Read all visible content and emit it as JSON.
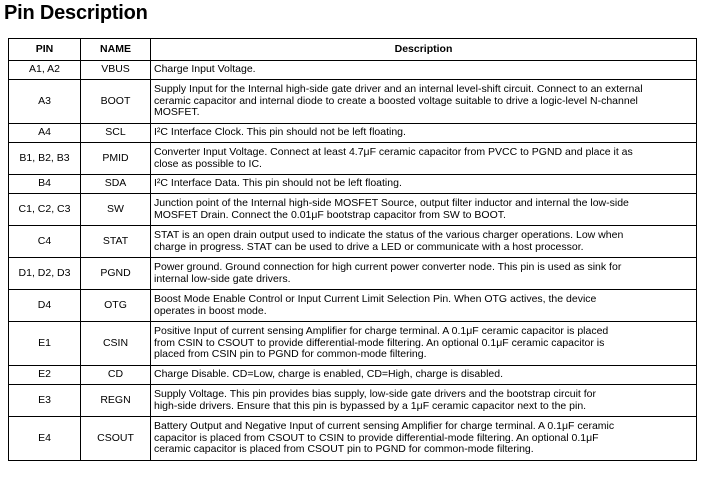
{
  "title": "Pin Description",
  "table": {
    "header": [
      "PIN",
      "NAME",
      "Description"
    ],
    "rows": [
      {
        "pin": "A1, A2",
        "name": "VBUS",
        "lines": [
          "Charge Input Voltage."
        ]
      },
      {
        "pin": "A3",
        "name": "BOOT",
        "lines": [
          "Supply Input for the Internal high-side gate driver and an internal level-shift circuit. Connect to an external",
          "ceramic capacitor and internal diode to create a boosted voltage suitable to drive a logic-level N-channel",
          "MOSFET."
        ]
      },
      {
        "pin": "A4",
        "name": "SCL",
        "lines": [
          "I²C Interface Clock. This pin should not be left floating."
        ]
      },
      {
        "pin": "B1, B2, B3",
        "name": "PMID",
        "lines": [
          "Converter Input Voltage. Connect at least 4.7μF ceramic capacitor from PVCC to PGND and place it as",
          "close as possible to IC."
        ]
      },
      {
        "pin": "B4",
        "name": "SDA",
        "lines": [
          "I²C Interface Data. This pin should not be left floating."
        ]
      },
      {
        "pin": "C1, C2, C3",
        "name": "SW",
        "lines": [
          "Junction point of the Internal high-side MOSFET Source, output filter inductor and internal the low-side",
          "MOSFET Drain. Connect the 0.01μF bootstrap capacitor from SW to BOOT."
        ]
      },
      {
        "pin": "C4",
        "name": "STAT",
        "lines": [
          "STAT is an open drain output used to indicate the status of the various charger operations. Low when",
          "charge in progress. STAT can be used to drive a LED or communicate with a host processor."
        ]
      },
      {
        "pin": "D1, D2, D3",
        "name": "PGND",
        "lines": [
          "Power ground. Ground connection for high current power converter node. This pin is used as sink for",
          "internal low-side gate drivers."
        ]
      },
      {
        "pin": "D4",
        "name": "OTG",
        "lines": [
          "Boost Mode Enable Control or Input Current Limit Selection Pin. When OTG actives, the device",
          "operates in boost mode."
        ]
      },
      {
        "pin": "E1",
        "name": "CSIN",
        "lines": [
          "Positive Input of current sensing Amplifier for charge terminal. A 0.1μF ceramic capacitor is placed",
          "from CSIN to CSOUT to provide differential-mode filtering. An optional 0.1μF ceramic capacitor is",
          "placed from CSIN pin to PGND for common-mode filtering."
        ]
      },
      {
        "pin": "E2",
        "name": "CD",
        "lines": [
          "Charge Disable. CD=Low, charge is enabled, CD=High, charge is disabled."
        ]
      },
      {
        "pin": "E3",
        "name": "REGN",
        "lines": [
          "Supply Voltage. This pin provides bias supply, low-side gate drivers and the bootstrap circuit for",
          "high-side drivers. Ensure that this pin is bypassed by a 1μF ceramic capacitor next to the pin."
        ]
      },
      {
        "pin": "E4",
        "name": "CSOUT",
        "lines": [
          "Battery Output and Negative Input of current sensing Amplifier for charge terminal. A 0.1μF ceramic",
          "capacitor is placed from CSOUT to CSIN to provide differential-mode filtering. An optional 0.1μF",
          "ceramic capacitor is placed from CSOUT pin to PGND for common-mode filtering."
        ]
      }
    ]
  }
}
